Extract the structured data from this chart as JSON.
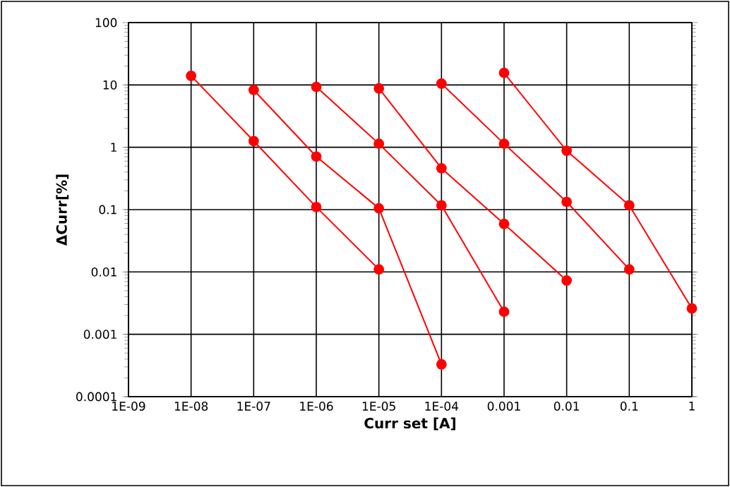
{
  "chart_data": {
    "type": "line",
    "xlabel": "Curr set [A]",
    "ylabel": "ΔCurr[%]",
    "log": "xy",
    "grid": true,
    "marker": "circle",
    "xlim": [
      1e-09,
      1
    ],
    "ylim": [
      0.0001,
      100
    ],
    "xticks": [
      {
        "value": 1e-09,
        "label": "1E-09"
      },
      {
        "value": 1e-08,
        "label": "1E-08"
      },
      {
        "value": 1e-07,
        "label": "1E-07"
      },
      {
        "value": 1e-06,
        "label": "1E-06"
      },
      {
        "value": 1e-05,
        "label": "1E-05"
      },
      {
        "value": 0.0001,
        "label": "1E-04"
      },
      0.001,
      0.01,
      0.1,
      1
    ],
    "yticks": [
      0.0001,
      0.001,
      0.01,
      0.1,
      1,
      10,
      100
    ],
    "series": [
      {
        "color": "#ff0000",
        "x": [
          1e-08,
          1e-07,
          1e-06,
          1e-05
        ],
        "values": [
          14,
          1.26,
          0.11,
          0.011
        ]
      },
      {
        "color": "#ff0000",
        "x": [
          1e-07,
          1e-06,
          1e-05,
          0.0001
        ],
        "values": [
          8.3,
          0.71,
          0.105,
          0.00033
        ]
      },
      {
        "color": "#ff0000",
        "x": [
          1e-06,
          1e-05,
          0.0001,
          0.001
        ],
        "values": [
          9.3,
          1.14,
          0.117,
          0.0023
        ]
      },
      {
        "color": "#ff0000",
        "x": [
          1e-05,
          0.0001,
          0.001,
          0.01
        ],
        "values": [
          8.8,
          0.46,
          0.059,
          0.0073
        ]
      },
      {
        "color": "#ff0000",
        "x": [
          0.0001,
          0.001,
          0.01,
          0.1
        ],
        "values": [
          10.5,
          1.14,
          0.133,
          0.011
        ]
      },
      {
        "color": "#ff0000",
        "x": [
          0.001,
          0.01,
          0.1,
          1
        ],
        "values": [
          15.6,
          0.88,
          0.117,
          0.0026
        ]
      }
    ]
  }
}
